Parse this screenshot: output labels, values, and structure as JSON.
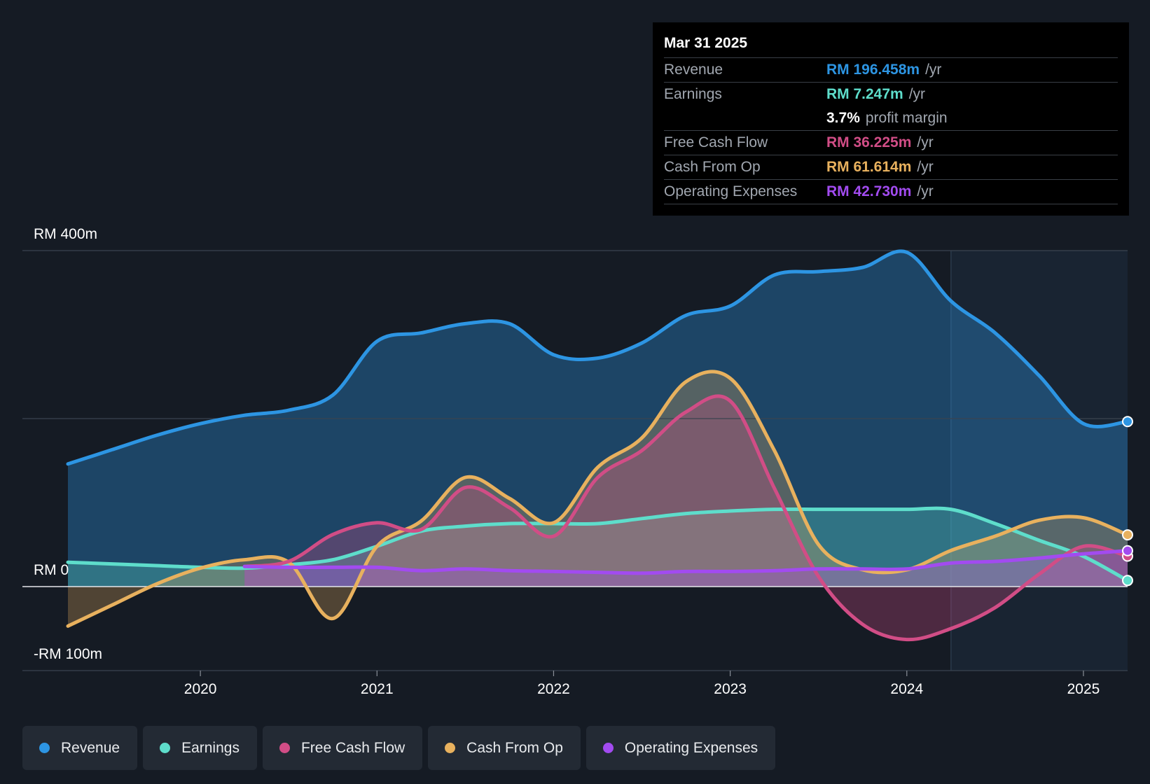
{
  "chart_data": {
    "type": "area",
    "y_axis": {
      "label_top": "RM 400m",
      "label_zero": "RM 0",
      "label_bottom": "-RM 100m",
      "ylim": [
        -100,
        400
      ],
      "gridlines": [
        400,
        200,
        0,
        -100
      ]
    },
    "x_axis": {
      "ticks": [
        "2020",
        "2021",
        "2022",
        "2023",
        "2024",
        "2025"
      ],
      "tick_values": [
        2020,
        2021,
        2022,
        2023,
        2024,
        2025
      ],
      "xlim": [
        2019.25,
        2025.25
      ]
    },
    "forecast_start": 2024.25,
    "series": [
      {
        "name": "Revenue",
        "color": "#2d95e3",
        "x": [
          2019.25,
          2019.5,
          2019.75,
          2020.0,
          2020.25,
          2020.5,
          2020.75,
          2021.0,
          2021.25,
          2021.5,
          2021.75,
          2022.0,
          2022.25,
          2022.5,
          2022.75,
          2023.0,
          2023.25,
          2023.5,
          2023.75,
          2024.0,
          2024.25,
          2024.5,
          2024.75,
          2025.0,
          2025.25
        ],
        "values": [
          146,
          163,
          180,
          194,
          204,
          210,
          228,
          292,
          302,
          313,
          313,
          276,
          272,
          290,
          323,
          334,
          371,
          375,
          380,
          398,
          340,
          302,
          251,
          194,
          196.458
        ]
      },
      {
        "name": "Earnings",
        "color": "#5eddcb",
        "x": [
          2019.25,
          2019.5,
          2019.75,
          2020.0,
          2020.25,
          2020.5,
          2020.75,
          2021.0,
          2021.25,
          2021.5,
          2021.75,
          2022.0,
          2022.25,
          2022.5,
          2022.75,
          2023.0,
          2023.25,
          2023.5,
          2023.75,
          2024.0,
          2024.25,
          2024.5,
          2024.75,
          2025.0,
          2025.25
        ],
        "values": [
          29,
          27,
          25,
          23,
          22,
          26,
          32,
          48,
          66,
          72,
          75,
          75,
          75,
          81,
          87,
          90,
          92,
          92,
          92,
          92,
          92,
          75,
          55,
          36,
          7.247
        ]
      },
      {
        "name": "Free Cash Flow",
        "color": "#d14d86",
        "x": [
          2020.25,
          2020.5,
          2020.75,
          2021.0,
          2021.25,
          2021.5,
          2021.75,
          2022.0,
          2022.25,
          2022.5,
          2022.75,
          2023.0,
          2023.25,
          2023.5,
          2023.75,
          2024.0,
          2024.25,
          2024.5,
          2024.75,
          2025.0,
          2025.25
        ],
        "values": [
          24,
          30,
          62,
          76,
          68,
          118,
          94,
          60,
          130,
          162,
          208,
          221,
          117,
          12,
          -45,
          -63,
          -50,
          -25,
          15,
          48,
          36.225
        ]
      },
      {
        "name": "Cash From Op",
        "color": "#e8b15e",
        "x": [
          2019.25,
          2019.5,
          2019.75,
          2020.0,
          2020.25,
          2020.5,
          2020.75,
          2021.0,
          2021.25,
          2021.5,
          2021.75,
          2022.0,
          2022.25,
          2022.5,
          2022.75,
          2023.0,
          2023.25,
          2023.5,
          2023.75,
          2024.0,
          2024.25,
          2024.5,
          2024.75,
          2025.0,
          2025.25
        ],
        "values": [
          -47,
          -22,
          3,
          22,
          32,
          29,
          -38,
          48,
          78,
          130,
          105,
          76,
          142,
          177,
          244,
          248,
          162,
          50,
          20,
          20,
          43,
          60,
          79,
          82,
          61.614
        ]
      },
      {
        "name": "Operating Expenses",
        "color": "#a24bf0",
        "x": [
          2020.25,
          2020.5,
          2020.75,
          2021.0,
          2021.25,
          2021.5,
          2021.75,
          2022.0,
          2022.25,
          2022.5,
          2022.75,
          2023.0,
          2023.25,
          2023.5,
          2023.75,
          2024.0,
          2024.25,
          2024.5,
          2024.75,
          2025.0,
          2025.25
        ],
        "values": [
          24,
          23,
          23,
          23,
          19,
          21,
          19,
          18,
          17,
          16,
          18,
          18,
          19,
          21,
          21,
          21,
          28,
          30,
          34,
          39,
          42.73
        ]
      }
    ]
  },
  "tooltip": {
    "date": "Mar 31 2025",
    "rows": [
      {
        "label": "Revenue",
        "value": "RM 196.458m",
        "unit": "/yr",
        "color": "#2d95e3"
      },
      {
        "label": "Earnings",
        "value": "RM 7.247m",
        "unit": "/yr",
        "color": "#5eddcb"
      },
      {
        "label": "",
        "value": "3.7%",
        "unit": "profit margin",
        "color": "#ffffff"
      },
      {
        "label": "Free Cash Flow",
        "value": "RM 36.225m",
        "unit": "/yr",
        "color": "#d14d86"
      },
      {
        "label": "Cash From Op",
        "value": "RM 61.614m",
        "unit": "/yr",
        "color": "#e8b15e"
      },
      {
        "label": "Operating Expenses",
        "value": "RM 42.730m",
        "unit": "/yr",
        "color": "#a24bf0"
      }
    ]
  },
  "legend": [
    {
      "label": "Revenue",
      "color": "#2d95e3"
    },
    {
      "label": "Earnings",
      "color": "#5eddcb"
    },
    {
      "label": "Free Cash Flow",
      "color": "#d14d86"
    },
    {
      "label": "Cash From Op",
      "color": "#e8b15e"
    },
    {
      "label": "Operating Expenses",
      "color": "#a24bf0"
    }
  ]
}
